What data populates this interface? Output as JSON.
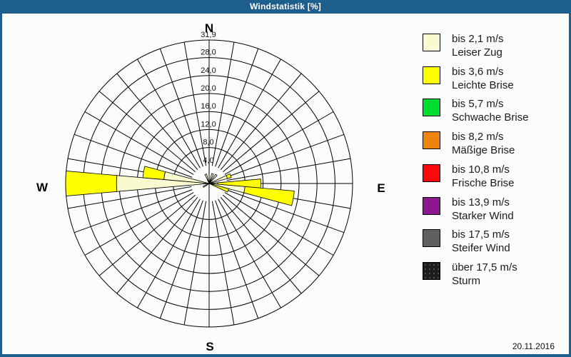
{
  "window": {
    "title": "Windstatistik [%]",
    "titlebar_color": "#1E5E8C"
  },
  "compass": {
    "north": "N",
    "south": "S",
    "east": "E",
    "west": "W"
  },
  "date_label": "20.11.2016",
  "legend": {
    "items": [
      {
        "color": "#FAFAD0",
        "speed": "bis 2,1 m/s",
        "name": "Leiser Zug",
        "pattern": "solid"
      },
      {
        "color": "#FFFF00",
        "speed": "bis 3,6 m/s",
        "name": "Leichte Brise",
        "pattern": "solid"
      },
      {
        "color": "#00DC32",
        "speed": "bis 5,7 m/s",
        "name": "Schwache Brise",
        "pattern": "solid"
      },
      {
        "color": "#EE840D",
        "speed": "bis 8,2 m/s",
        "name": "Mäßige Brise",
        "pattern": "solid"
      },
      {
        "color": "#FA0A0A",
        "speed": "bis 10,8 m/s",
        "name": "Frische Brise",
        "pattern": "solid"
      },
      {
        "color": "#8E168E",
        "speed": "bis 13,9 m/s",
        "name": "Starker Wind",
        "pattern": "solid"
      },
      {
        "color": "#606060",
        "speed": "bis 17,5 m/s",
        "name": "Steifer Wind",
        "pattern": "solid"
      },
      {
        "color": "#1D1D1D",
        "speed": "über 17,5 m/s",
        "name": "Sturm",
        "pattern": "speckled"
      }
    ]
  },
  "chart_data": {
    "type": "wind_rose",
    "title": "Windstatistik [%]",
    "units": "percent",
    "sector_width_deg": 10,
    "rmax": 31.9,
    "grid_circles": [
      8,
      12,
      16,
      20,
      24,
      28,
      31.9
    ],
    "spoke_inner_radius": 4,
    "tick_labels": [
      {
        "r": 4,
        "label": "4,0"
      },
      {
        "r": 8,
        "label": "8,0"
      },
      {
        "r": 12,
        "label": "12,0"
      },
      {
        "r": 16,
        "label": "16,0"
      },
      {
        "r": 20,
        "label": "20,0"
      },
      {
        "r": 24,
        "label": "24,0"
      },
      {
        "r": 28,
        "label": "28,0"
      },
      {
        "r": 31.9,
        "label": "31,9"
      }
    ],
    "stack_classes": [
      "bis 2,1 m/s Leiser Zug",
      "bis 3,6 m/s Leichte Brise"
    ],
    "petals": [
      {
        "dir_deg": 20,
        "values": [
          2.3
        ]
      },
      {
        "dir_deg": 40,
        "values": [
          2.5
        ]
      },
      {
        "dir_deg": 70,
        "values": [
          4.2,
          0.9
        ]
      },
      {
        "dir_deg": 90,
        "values": [
          1.9,
          9.6
        ]
      },
      {
        "dir_deg": 100,
        "values": [
          8.0,
          11.0
        ]
      },
      {
        "dir_deg": 110,
        "values": [
          0.8,
          3.7
        ]
      },
      {
        "dir_deg": 240,
        "values": [
          1.5
        ]
      },
      {
        "dir_deg": 270,
        "values": [
          20.6,
          11.3
        ]
      },
      {
        "dir_deg": 280,
        "values": [
          10.1,
          4.7
        ]
      },
      {
        "dir_deg": 340,
        "values": [
          2.2
        ]
      }
    ]
  }
}
